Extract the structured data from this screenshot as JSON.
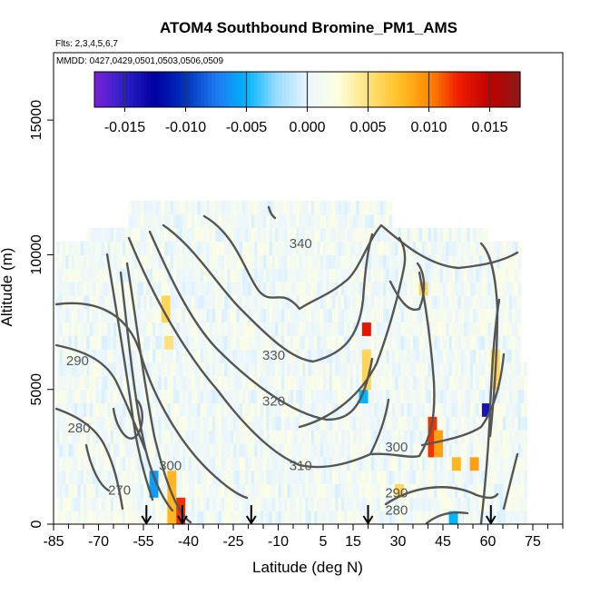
{
  "chart_data": {
    "type": "heatmap",
    "title": "ATOM4 Southbound Bromine_PM1_AMS",
    "flights_note": "Flts: 2,3,4,5,6,7",
    "mmdd_note": "MMDD: 0427,0429,0501,0503,0506,0509",
    "xlabel": "Latitude (deg N)",
    "ylabel": "Altitude (m)",
    "xlim": [
      -85,
      85
    ],
    "ylim": [
      0,
      17500
    ],
    "x_ticks": [
      "-85",
      "-70",
      "-55",
      "-40",
      "-25",
      "-10",
      "5",
      "15",
      "30",
      "45",
      "60",
      "75"
    ],
    "x_tick_values": [
      -85,
      -70,
      -55,
      -40,
      -25,
      -10,
      5,
      15,
      30,
      45,
      60,
      75
    ],
    "x_minor_step": 5,
    "y_ticks": [
      "0",
      "5000",
      "10000",
      "15000"
    ],
    "y_tick_values": [
      0,
      5000,
      10000,
      15000
    ],
    "colorbar": {
      "range": [
        -0.0175,
        0.0175
      ],
      "tick_values": [
        -0.015,
        -0.01,
        -0.005,
        0,
        0.005,
        0.01,
        0.015
      ],
      "tick_labels": [
        "-0.015",
        "-0.010",
        "-0.005",
        "0.000",
        "0.005",
        "0.010",
        "0.015"
      ],
      "colors": [
        "#7a22d8",
        "#2a1fc8",
        "#0000a0",
        "#0033c0",
        "#1e78f0",
        "#00b4ff",
        "#9adcff",
        "#eaf6ff",
        "#ffffe0",
        "#ffe37a",
        "#ffc12a",
        "#ff8a00",
        "#ee1c00",
        "#c00000",
        "#8c1a1a"
      ]
    },
    "contours": [
      {
        "label": "340",
        "label_at": [
          -2.5,
          10250
        ]
      },
      {
        "label": "330",
        "label_at": [
          -11.5,
          6100
        ]
      },
      {
        "label": "320",
        "label_at": [
          -11.5,
          4400
        ]
      },
      {
        "label": "310",
        "label_at": [
          -2.5,
          2000
        ]
      },
      {
        "label": "300",
        "label_at": [
          -46,
          2000
        ]
      },
      {
        "label": "300",
        "label_at": [
          29.5,
          2700
        ]
      },
      {
        "label": "290",
        "label_at": [
          -77,
          5900
        ]
      },
      {
        "label": "290",
        "label_at": [
          29.5,
          1000
        ]
      },
      {
        "label": "280",
        "label_at": [
          -76.5,
          3400
        ]
      },
      {
        "label": "280",
        "label_at": [
          29.5,
          350
        ]
      },
      {
        "label": "270",
        "label_at": [
          -63,
          1100
        ]
      }
    ],
    "flight_markers_lat": [
      -54,
      -42,
      -19,
      20,
      61
    ],
    "background_value": 0.0008,
    "anomalies": [
      {
        "lat": -46,
        "alt_min": 0,
        "alt_max": 1600,
        "value": 0.008
      },
      {
        "lat": -43,
        "alt_min": 0,
        "alt_max": 600,
        "value": 0.012
      },
      {
        "lat": -52,
        "alt_min": 800,
        "alt_max": 1600,
        "value": -0.006
      },
      {
        "lat": -48,
        "alt_min": 7500,
        "alt_max": 8500,
        "value": 0.006
      },
      {
        "lat": -47,
        "alt_min": 6500,
        "alt_max": 7000,
        "value": 0.005
      },
      {
        "lat": 19,
        "alt_min": 7000,
        "alt_max": 7500,
        "value": 0.013
      },
      {
        "lat": 19,
        "alt_min": 5000,
        "alt_max": 6500,
        "value": 0.006
      },
      {
        "lat": 18,
        "alt_min": 4500,
        "alt_max": 5000,
        "value": -0.005
      },
      {
        "lat": 41,
        "alt_min": 2500,
        "alt_max": 4000,
        "value": 0.012
      },
      {
        "lat": 43,
        "alt_min": 2500,
        "alt_max": 3500,
        "value": 0.009
      },
      {
        "lat": 49,
        "alt_min": 1800,
        "alt_max": 2300,
        "value": 0.008
      },
      {
        "lat": 55,
        "alt_min": 1800,
        "alt_max": 2300,
        "value": 0.009
      },
      {
        "lat": 59,
        "alt_min": 4000,
        "alt_max": 4500,
        "value": -0.014
      },
      {
        "lat": 62,
        "alt_min": 5000,
        "alt_max": 6500,
        "value": 0.006
      },
      {
        "lat": 48,
        "alt_min": 0,
        "alt_max": 500,
        "value": -0.005
      },
      {
        "lat": 38,
        "alt_min": 8500,
        "alt_max": 9000,
        "value": 0.006
      },
      {
        "lat": 30,
        "alt_min": 1000,
        "alt_max": 1500,
        "value": 0.006
      }
    ]
  }
}
